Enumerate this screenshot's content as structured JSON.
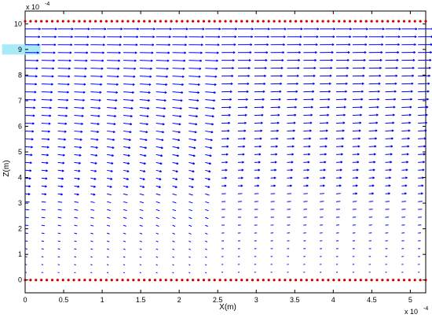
{
  "chart_data": {
    "type": "quiver",
    "title": "",
    "xlabel": "X(m)",
    "ylabel": "Z(m)",
    "x_exponent": "x 10",
    "x_exponent_power": "-4",
    "y_exponent": "x 10",
    "y_exponent_power": "-4",
    "xlim": [
      0,
      5.2
    ],
    "ylim": [
      -0.5,
      10.5
    ],
    "x_ticks": [
      "0",
      "0.5",
      "1",
      "1.5",
      "2",
      "2.5",
      "3",
      "3.5",
      "4",
      "4.5",
      "5"
    ],
    "y_ticks": [
      "0",
      "1",
      "2",
      "3",
      "4",
      "5",
      "6",
      "7",
      "8",
      "9",
      "10"
    ],
    "x_tick_values": [
      0,
      0.5,
      1,
      1.5,
      2,
      2.5,
      3,
      3.5,
      4,
      4.5,
      5
    ],
    "y_tick_values": [
      0,
      1,
      2,
      3,
      4,
      5,
      6,
      7,
      8,
      9,
      10
    ],
    "grid": false,
    "legend": "none",
    "arrow_color": "#0000ff",
    "boundary_marker_color": "#cc0000",
    "highlight_color": "#9fe8f5",
    "field": {
      "x_range": [
        0,
        5.1
      ],
      "z_range": [
        0.3,
        9.8
      ],
      "columns": 25,
      "rows": 32,
      "description_values": {
        "max_length": 0.2,
        "min_length": 0.02,
        "flow_direction": "+x",
        "curvature": "arrows bow downward in centre of channel toward lower z"
      }
    },
    "boundaries": [
      {
        "name": "bottom wall",
        "z": 0,
        "x_range": [
          0,
          5.2
        ],
        "marker": "dot",
        "count": 75
      },
      {
        "name": "top wall",
        "z": 10.1,
        "x_range": [
          0,
          5.2
        ],
        "marker": "dot",
        "count": 75
      }
    ],
    "highlight_band": {
      "z_range": [
        8.8,
        9.2
      ],
      "x_range": [
        -0.3,
        0.2
      ]
    }
  }
}
